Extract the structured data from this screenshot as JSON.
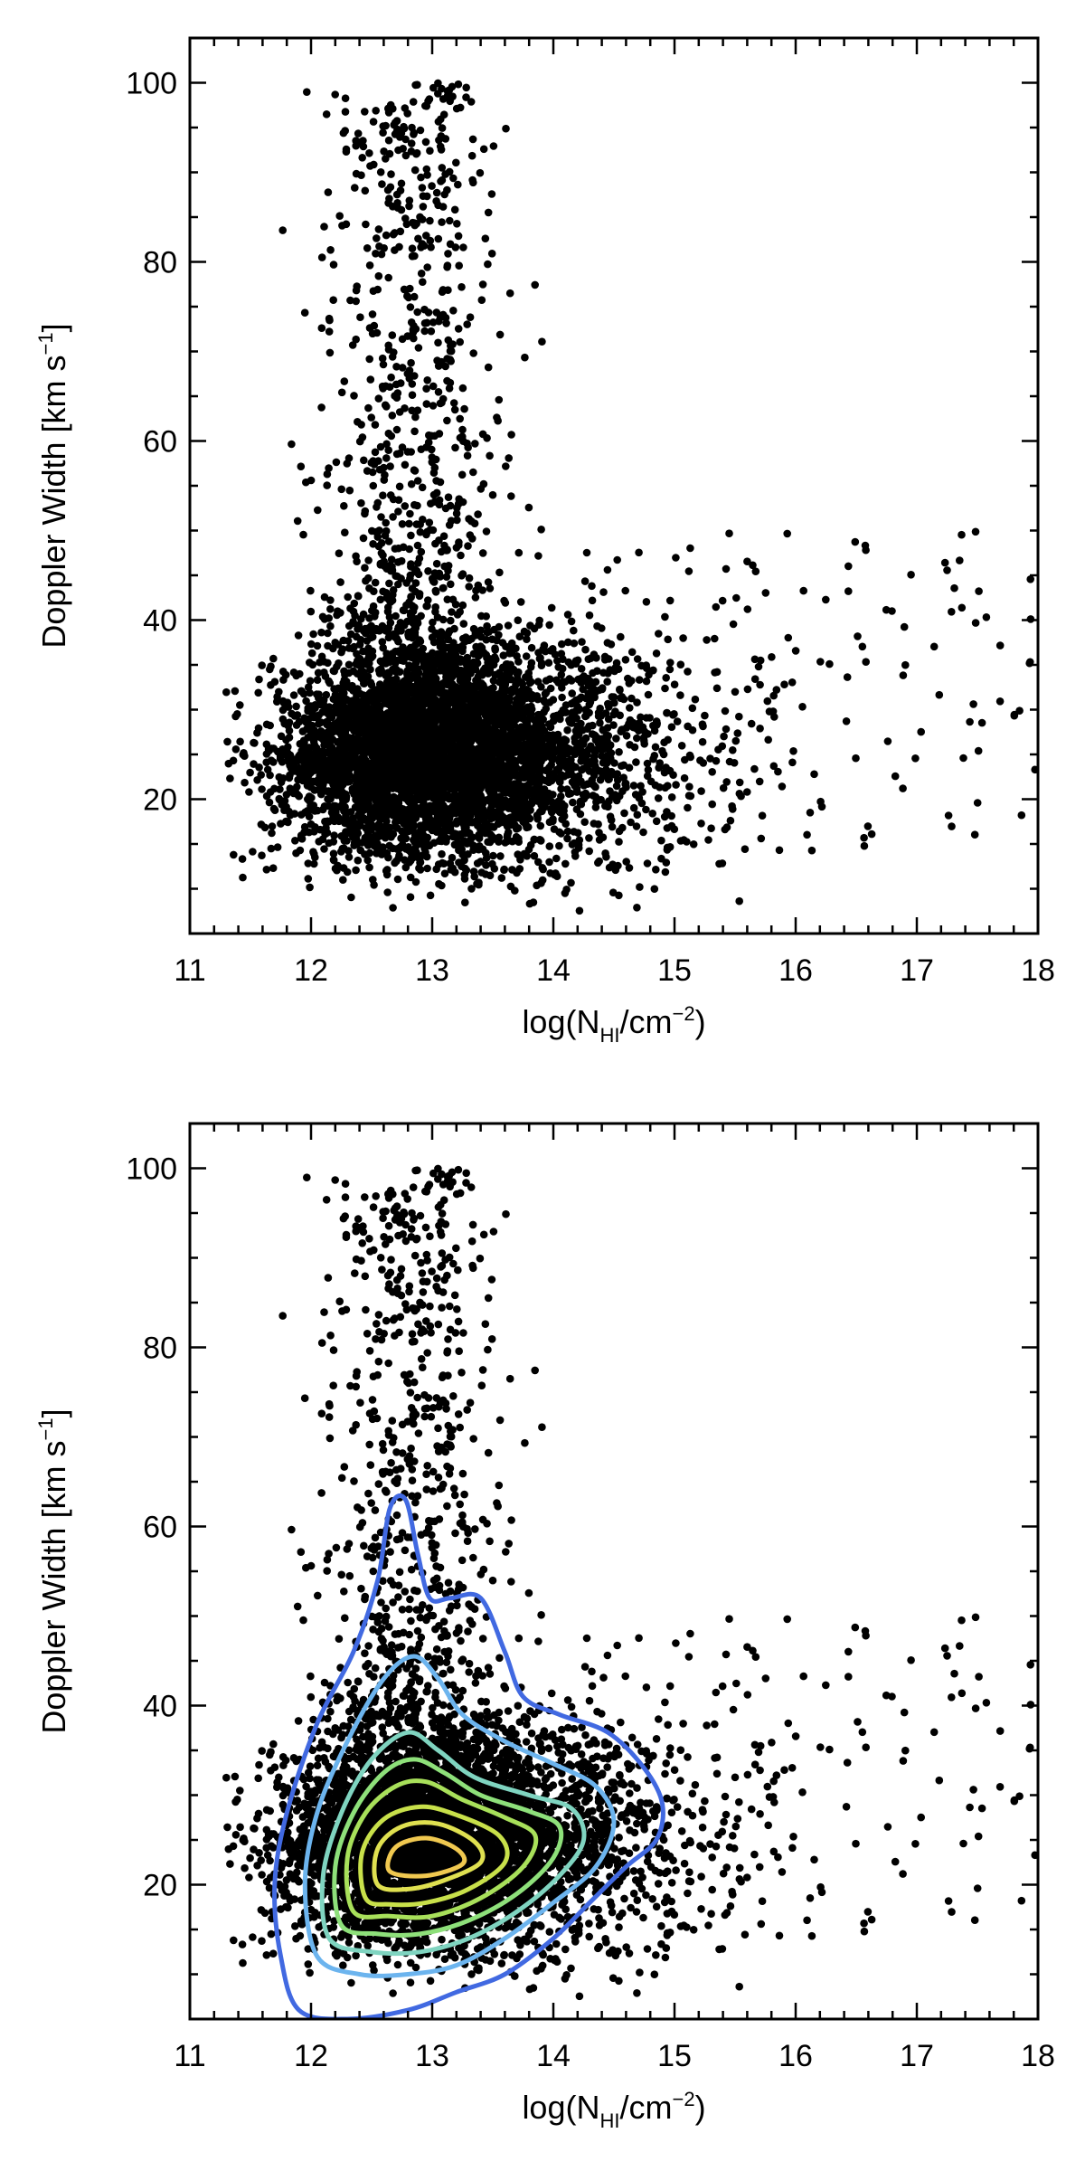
{
  "chart_data": [
    {
      "type": "scatter",
      "panel": "top",
      "xlabel": {
        "prefix": "log(N",
        "sub": "HI",
        "suffix": "/cm",
        "sup": "−2",
        "close": ")"
      },
      "ylabel": {
        "prefix": "Doppler Width [km s",
        "sup": "−1",
        "close": "]"
      },
      "xlim": [
        11,
        18
      ],
      "ylim": [
        5,
        105
      ],
      "xticks": [
        "11",
        "12",
        "13",
        "14",
        "15",
        "16",
        "17",
        "18"
      ],
      "yticks": [
        "20",
        "40",
        "60",
        "80",
        "100"
      ],
      "contours": false,
      "point_color": "#000000",
      "n_points_approx": 6000
    },
    {
      "type": "scatter",
      "panel": "bottom",
      "xlabel": {
        "prefix": "log(N",
        "sub": "HI",
        "suffix": "/cm",
        "sup": "−2",
        "close": ")"
      },
      "ylabel": {
        "prefix": "Doppler Width [km s",
        "sup": "−1",
        "close": "]"
      },
      "xlim": [
        11,
        18
      ],
      "ylim": [
        5,
        105
      ],
      "xticks": [
        "11",
        "12",
        "13",
        "14",
        "15",
        "16",
        "17",
        "18"
      ],
      "yticks": [
        "20",
        "40",
        "60",
        "80",
        "100"
      ],
      "contours": true,
      "point_color": "#000000",
      "n_points_approx": 6000,
      "contour_colors": [
        "#4169e1",
        "#6cb4ee",
        "#7fd4c0",
        "#8ee07a",
        "#a8e05a",
        "#c8e04a",
        "#dfe050",
        "#f0c850"
      ],
      "contour_levels": [
        {
          "color": "#4169e1",
          "points": [
            [
              11.9,
              6
            ],
            [
              11.75,
              12
            ],
            [
              11.7,
              20
            ],
            [
              11.8,
              28
            ],
            [
              12.05,
              38
            ],
            [
              12.35,
              46
            ],
            [
              12.55,
              54
            ],
            [
              12.65,
              62
            ],
            [
              12.78,
              63
            ],
            [
              12.88,
              57
            ],
            [
              12.98,
              52
            ],
            [
              13.15,
              52
            ],
            [
              13.4,
              52
            ],
            [
              13.6,
              46
            ],
            [
              13.75,
              41
            ],
            [
              14.05,
              39
            ],
            [
              14.45,
              37
            ],
            [
              14.75,
              33
            ],
            [
              14.9,
              29
            ],
            [
              14.85,
              25
            ],
            [
              14.6,
              22
            ],
            [
              14.3,
              18
            ],
            [
              14.0,
              14
            ],
            [
              13.6,
              10
            ],
            [
              13.2,
              8
            ],
            [
              12.8,
              6
            ],
            [
              12.3,
              5
            ]
          ]
        },
        {
          "color": "#6cb4ee",
          "points": [
            [
              12.05,
              12
            ],
            [
              11.95,
              20
            ],
            [
              12.05,
              28
            ],
            [
              12.3,
              36
            ],
            [
              12.6,
              43
            ],
            [
              12.85,
              45.5
            ],
            [
              13.05,
              43
            ],
            [
              13.25,
              39
            ],
            [
              13.6,
              36
            ],
            [
              14.0,
              33.5
            ],
            [
              14.35,
              31
            ],
            [
              14.5,
              27
            ],
            [
              14.35,
              22
            ],
            [
              14.0,
              18
            ],
            [
              13.6,
              14
            ],
            [
              13.2,
              11
            ],
            [
              12.8,
              10
            ],
            [
              12.4,
              10
            ]
          ]
        },
        {
          "color": "#7fd4c0",
          "points": [
            [
              12.15,
              14
            ],
            [
              12.1,
              21
            ],
            [
              12.25,
              28
            ],
            [
              12.5,
              34
            ],
            [
              12.8,
              37
            ],
            [
              13.05,
              35
            ],
            [
              13.35,
              32
            ],
            [
              13.8,
              30
            ],
            [
              14.15,
              28.5
            ],
            [
              14.25,
              25
            ],
            [
              14.05,
              21
            ],
            [
              13.7,
              17
            ],
            [
              13.3,
              14
            ],
            [
              12.9,
              12.5
            ],
            [
              12.5,
              12.5
            ]
          ]
        },
        {
          "color": "#8ee07a",
          "points": [
            [
              12.25,
              15.5
            ],
            [
              12.2,
              22
            ],
            [
              12.35,
              28
            ],
            [
              12.6,
              32.5
            ],
            [
              12.85,
              34
            ],
            [
              13.1,
              32.5
            ],
            [
              13.4,
              30
            ],
            [
              13.8,
              28.2
            ],
            [
              14.05,
              26.5
            ],
            [
              14.0,
              23
            ],
            [
              13.7,
              19
            ],
            [
              13.3,
              16
            ],
            [
              12.9,
              14.5
            ],
            [
              12.55,
              14.5
            ]
          ]
        },
        {
          "color": "#a8e05a",
          "points": [
            [
              12.35,
              17
            ],
            [
              12.3,
              23
            ],
            [
              12.45,
              28
            ],
            [
              12.7,
              31
            ],
            [
              12.95,
              31.5
            ],
            [
              13.25,
              29.5
            ],
            [
              13.6,
              27.5
            ],
            [
              13.85,
              25.5
            ],
            [
              13.75,
              22
            ],
            [
              13.4,
              18.5
            ],
            [
              13.0,
              16.5
            ],
            [
              12.65,
              16.5
            ]
          ]
        },
        {
          "color": "#c8e04a",
          "points": [
            [
              12.45,
              18.5
            ],
            [
              12.42,
              23.5
            ],
            [
              12.6,
              27.3
            ],
            [
              12.9,
              28.7
            ],
            [
              13.2,
              27.8
            ],
            [
              13.55,
              25.5
            ],
            [
              13.6,
              22.5
            ],
            [
              13.3,
              19.5
            ],
            [
              12.95,
              18
            ],
            [
              12.65,
              17.8
            ]
          ]
        },
        {
          "color": "#dfe050",
          "points": [
            [
              12.55,
              20
            ],
            [
              12.55,
              24
            ],
            [
              12.75,
              26.5
            ],
            [
              13.05,
              26.8
            ],
            [
              13.35,
              24.8
            ],
            [
              13.4,
              22.5
            ],
            [
              13.1,
              20.5
            ],
            [
              12.8,
              19.5
            ]
          ]
        },
        {
          "color": "#f0c850",
          "points": [
            [
              12.65,
              21.5
            ],
            [
              12.7,
              24.2
            ],
            [
              12.95,
              25.2
            ],
            [
              13.2,
              24
            ],
            [
              13.25,
              22.3
            ],
            [
              12.95,
              21
            ]
          ]
        }
      ]
    }
  ]
}
